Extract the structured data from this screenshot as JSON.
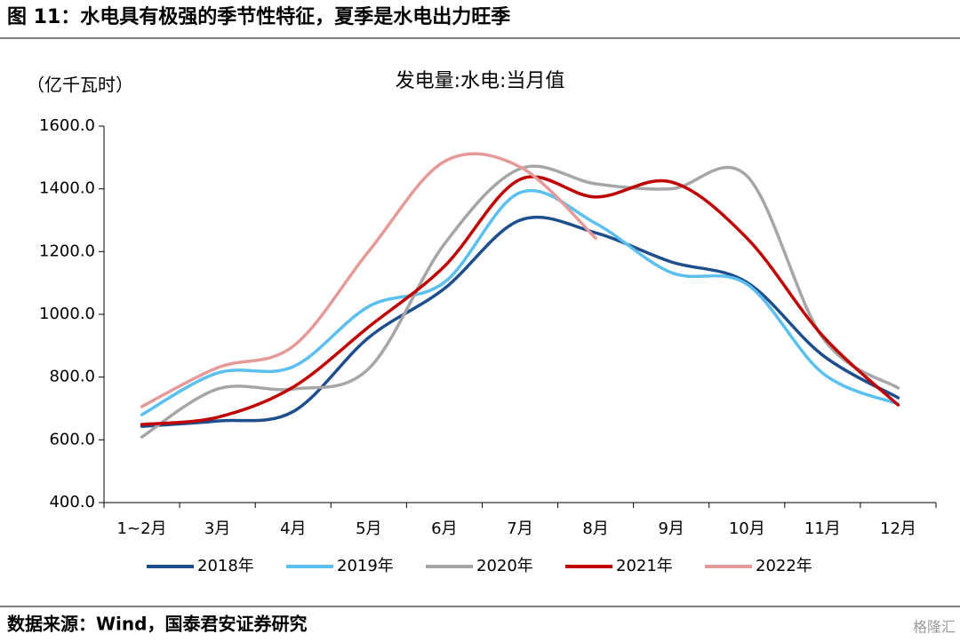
{
  "header": "图 11：水电具有极强的季节性特征，夏季是水电出力旺季",
  "footer": "数据来源：Wind，国泰君安证券研究",
  "watermark": "格隆汇",
  "chart_data": {
    "type": "line",
    "title": "发电量:水电:当月值",
    "y_label": "（亿千瓦时）",
    "categories": [
      "1~2月",
      "3月",
      "4月",
      "5月",
      "6月",
      "7月",
      "8月",
      "9月",
      "10月",
      "11月",
      "12月"
    ],
    "series": [
      {
        "name": "2018年",
        "color": "#1f4e8c",
        "values": [
          643,
          660,
          690,
          926,
          1082,
          1300,
          1260,
          1167,
          1102,
          870,
          734
        ]
      },
      {
        "name": "2019年",
        "color": "#5bc0f0",
        "values": [
          680,
          813,
          833,
          1025,
          1102,
          1388,
          1290,
          1133,
          1096,
          813,
          714
        ]
      },
      {
        "name": "2020年",
        "color": "#a6a6a6",
        "values": [
          609,
          762,
          762,
          827,
          1224,
          1464,
          1416,
          1400,
          1441,
          926,
          765
        ]
      },
      {
        "name": "2021年",
        "color": "#c00000",
        "values": [
          649,
          672,
          768,
          960,
          1153,
          1430,
          1374,
          1422,
          1243,
          932,
          711
        ]
      },
      {
        "name": "2022年",
        "color": "#e59a9a",
        "values": [
          706,
          830,
          898,
          1201,
          1487,
          1470,
          1243,
          null,
          null,
          null,
          null
        ]
      }
    ],
    "ylim": [
      400,
      1600
    ],
    "yticks": [
      {
        "value": 400,
        "label": "400.0"
      },
      {
        "value": 600,
        "label": "600.0"
      },
      {
        "value": 800,
        "label": "800.0"
      },
      {
        "value": 1000,
        "label": "1000.0"
      },
      {
        "value": 1200,
        "label": "1200.0"
      },
      {
        "value": 1400,
        "label": "1400.0"
      },
      {
        "value": 1600,
        "label": "1600.0"
      }
    ],
    "legend": "bottom"
  }
}
